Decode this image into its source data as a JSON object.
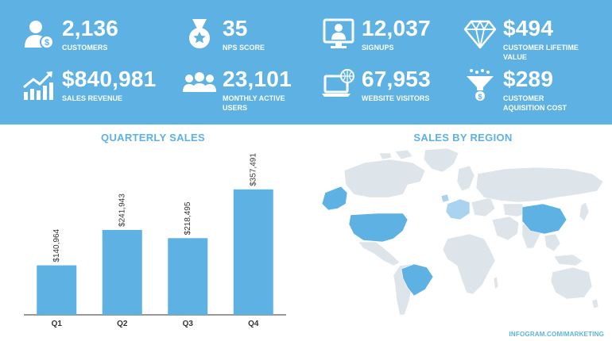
{
  "kpis": [
    {
      "value": "2,136",
      "label": "CUSTOMERS",
      "icon": "customer-icon"
    },
    {
      "value": "35",
      "label": "NPS SCORE",
      "icon": "medal-icon"
    },
    {
      "value": "12,037",
      "label": "SIGNUPS",
      "icon": "signup-screen-icon"
    },
    {
      "value": "$494",
      "label": "CUSTOMER LIFETIME VALUE",
      "icon": "diamond-icon"
    },
    {
      "value": "$840,981",
      "label": "SALES REVENUE",
      "icon": "revenue-chart-icon"
    },
    {
      "value": "23,101",
      "label": "MONTHLY ACTIVE USERS",
      "icon": "users-group-icon"
    },
    {
      "value": "67,953",
      "label": "WEBSITE VISITORS",
      "icon": "laptop-globe-icon"
    },
    {
      "value": "$289",
      "label": "CUSTOMER AQUISITION COST",
      "icon": "funnel-icon"
    }
  ],
  "sections": {
    "quarterly_title": "QUARTERLY SALES",
    "region_title": "SALES BY REGION"
  },
  "footer": "INFOGRAM.COM/MARKETING",
  "colors": {
    "band": "#5db2e3",
    "bar": "#5db2e3",
    "map_base": "#dde4ea",
    "map_highlight": "#5db2e3",
    "map_light": "#a9d3ee"
  },
  "chart_data": [
    {
      "type": "bar",
      "title": "QUARTERLY SALES",
      "categories": [
        "Q1",
        "Q2",
        "Q3",
        "Q4"
      ],
      "values": [
        140964,
        241943,
        218495,
        357491
      ],
      "value_labels": [
        "$140,964",
        "$241,943",
        "$218,495",
        "$357,491"
      ],
      "ylim": [
        0,
        400000
      ],
      "grid": false,
      "legend": "none"
    },
    {
      "type": "map",
      "title": "SALES BY REGION",
      "highlighted_regions": [
        "United States",
        "Alaska",
        "Brazil",
        "China",
        "Western Europe"
      ]
    }
  ]
}
